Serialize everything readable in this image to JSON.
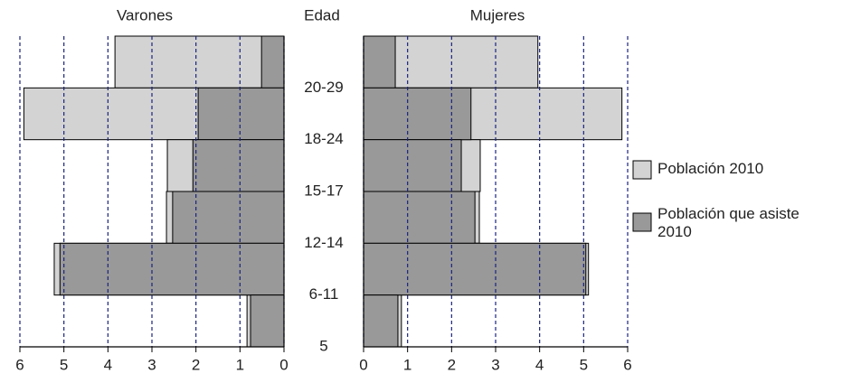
{
  "chart_data": {
    "type": "bar",
    "orientation": "horizontal",
    "axis_title": "Edad",
    "panels": [
      "Varones",
      "Mujeres"
    ],
    "categories": [
      "20-29",
      "18-24",
      "15-17",
      "12-14",
      "6-11",
      "5"
    ],
    "xlim": [
      0,
      6
    ],
    "xticks": [
      0,
      1,
      2,
      3,
      4,
      5,
      6
    ],
    "grid": true,
    "series": [
      {
        "name": "Población 2010",
        "color": "#d3d3d3",
        "values": [
          [
            3.84,
            5.91,
            2.65,
            2.67,
            5.22,
            0.84
          ],
          [
            3.96,
            5.87,
            2.65,
            2.63,
            5.11,
            0.86
          ]
        ]
      },
      {
        "name": "Población que asiste 2010",
        "color": "#999999",
        "values": [
          [
            0.51,
            1.95,
            2.07,
            2.53,
            5.09,
            0.76
          ],
          [
            0.72,
            2.44,
            2.22,
            2.53,
            5.05,
            0.78
          ]
        ]
      }
    ]
  }
}
